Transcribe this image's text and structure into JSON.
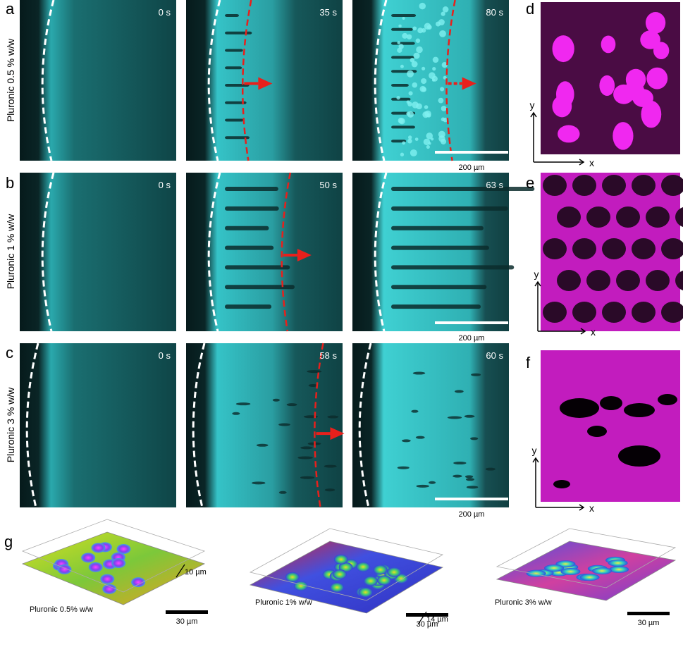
{
  "panels": [
    {
      "letter": "a",
      "row_label": "Pluronic 0.5 % w/w",
      "times": [
        "0 s",
        "35 s",
        "80 s"
      ],
      "scale_bar": "200 µm",
      "side_letter": "d",
      "axis_y": "y",
      "axis_x": "x"
    },
    {
      "letter": "b",
      "row_label": "Pluronic 1 % w/w",
      "times": [
        "0 s",
        "50 s",
        "63 s"
      ],
      "scale_bar": "200 µm",
      "side_letter": "e",
      "axis_y": "y",
      "axis_x": "x"
    },
    {
      "letter": "c",
      "row_label": "Pluronic 3 % w/w",
      "times": [
        "0 s",
        "58 s",
        "60 s"
      ],
      "scale_bar": "200 µm",
      "side_letter": "f",
      "axis_y": "y",
      "axis_x": "x"
    }
  ],
  "panel_g": {
    "letter": "g",
    "renders": [
      {
        "label": "Pluronic 0.5% w/w",
        "depth": "10 µm",
        "scale_bar": "30 µm"
      },
      {
        "label": "Pluronic 1% w/w",
        "depth": "14 µm",
        "scale_bar": "30 µm"
      },
      {
        "label": "Pluronic 3% w/w",
        "scale_bar": "30 µm"
      }
    ]
  }
}
